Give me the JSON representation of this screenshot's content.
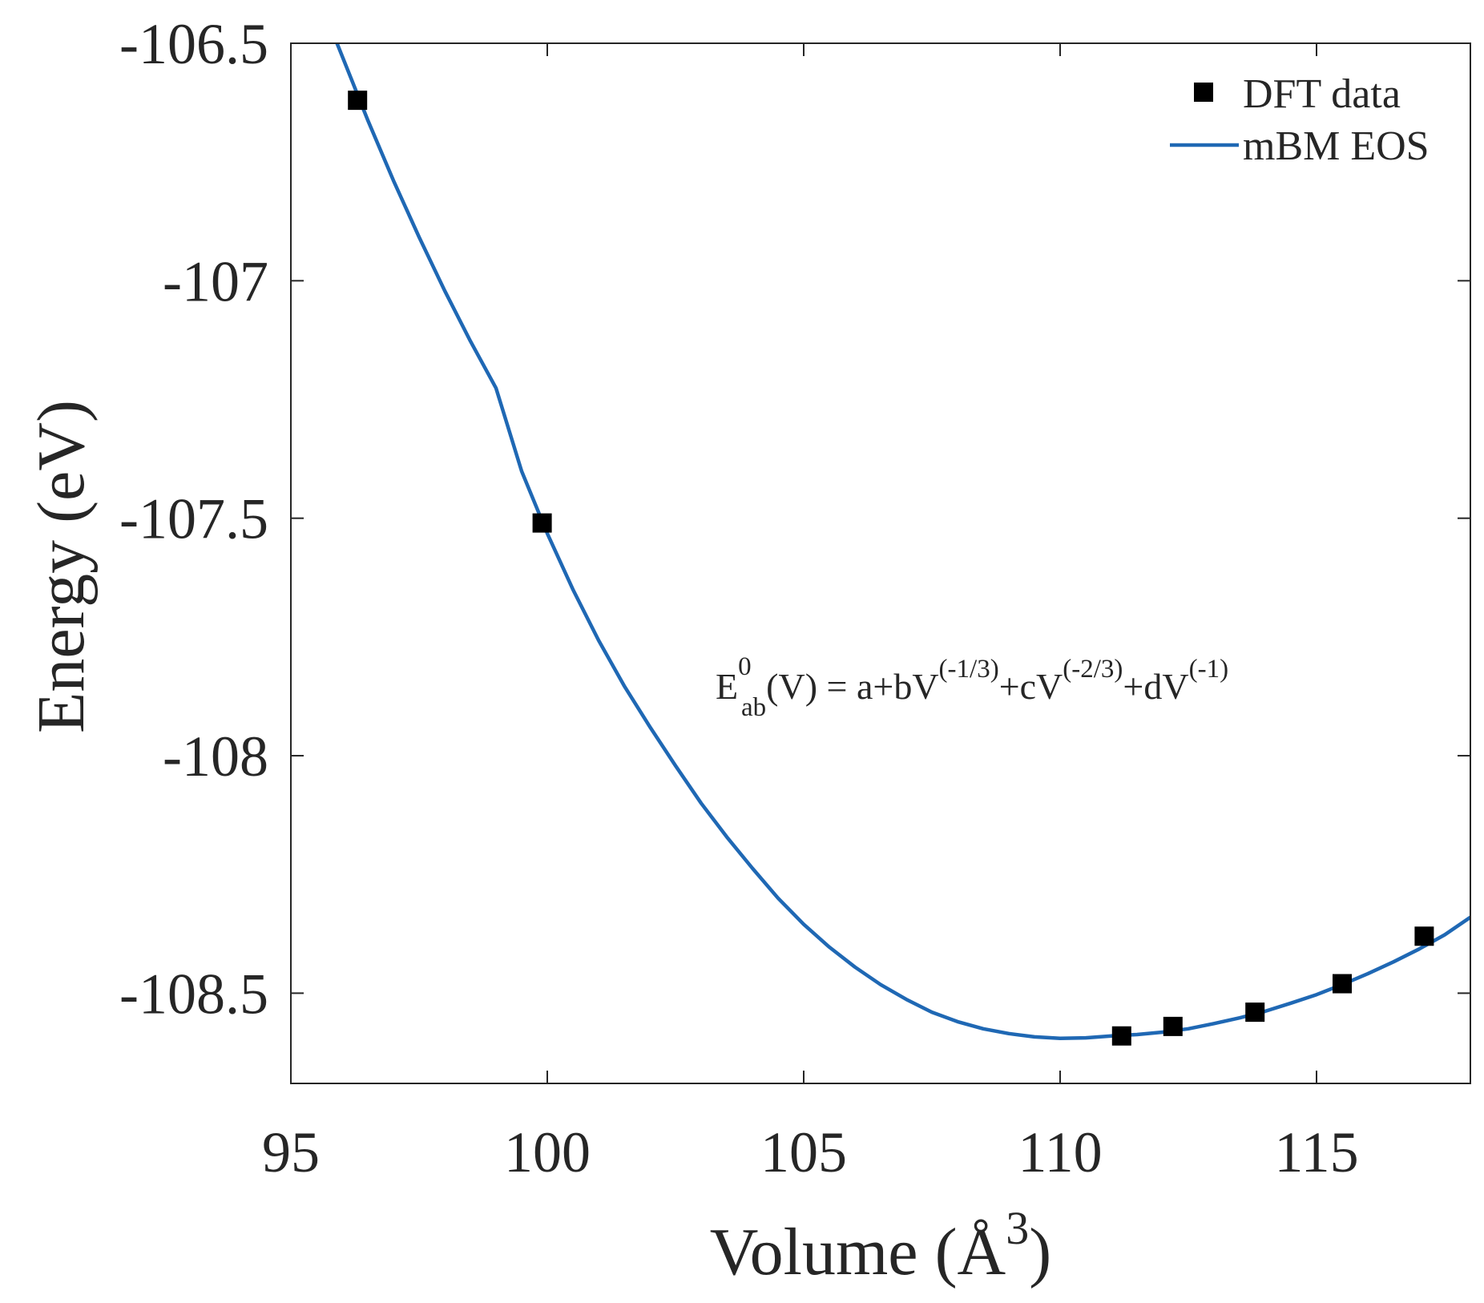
{
  "chart_data": {
    "type": "scatter",
    "title": "",
    "xlabel": "Volume (Å",
    "xlabel_sup": "3",
    "xlabel_close": ")",
    "ylabel": "Energy (eV)",
    "xlim": [
      95,
      118
    ],
    "ylim": [
      -108.69,
      -106.5
    ],
    "xticks": [
      95,
      100,
      105,
      110,
      115
    ],
    "xtick_labels": [
      "95",
      "100",
      "105",
      "110",
      "115"
    ],
    "yticks": [
      -106.5,
      -107,
      -107.5,
      -108,
      -108.5
    ],
    "ytick_labels": [
      "-106.5",
      "-107",
      "-107.5",
      "-108",
      "-108.5"
    ],
    "grid": false,
    "legend_position": "top-right",
    "series": [
      {
        "name": "DFT data",
        "kind": "scatter",
        "marker": "square",
        "color": "#000000",
        "points": [
          {
            "x": 96.3,
            "y": -106.62
          },
          {
            "x": 99.9,
            "y": -107.51
          },
          {
            "x": 111.2,
            "y": -108.59
          },
          {
            "x": 112.2,
            "y": -108.57
          },
          {
            "x": 113.8,
            "y": -108.54
          },
          {
            "x": 115.5,
            "y": -108.48
          },
          {
            "x": 117.1,
            "y": -108.38
          }
        ]
      },
      {
        "name": "mBM EOS",
        "kind": "line",
        "color": "#1f68b4",
        "x": [
          95.9,
          96.5,
          97,
          97.5,
          98,
          98.5,
          99,
          99.5,
          100,
          100.5,
          101,
          101.5,
          102,
          102.5,
          103,
          103.5,
          104,
          104.5,
          105,
          105.5,
          106,
          106.5,
          107,
          107.5,
          108,
          108.5,
          109,
          109.5,
          110,
          110.5,
          111,
          111.5,
          112,
          112.5,
          113,
          113.5,
          114,
          114.5,
          115,
          115.5,
          116,
          116.5,
          117,
          117.5,
          118
        ],
        "y": [
          -106.5,
          -106.662,
          -106.789,
          -106.908,
          -107.021,
          -107.127,
          -107.226,
          -107.401,
          -107.532,
          -107.65,
          -107.757,
          -107.853,
          -107.939,
          -108.021,
          -108.1,
          -108.171,
          -108.237,
          -108.3,
          -108.355,
          -108.403,
          -108.445,
          -108.482,
          -108.513,
          -108.54,
          -108.56,
          -108.575,
          -108.585,
          -108.592,
          -108.595,
          -108.594,
          -108.59,
          -108.587,
          -108.582,
          -108.575,
          -108.564,
          -108.552,
          -108.538,
          -108.521,
          -108.503,
          -108.482,
          -108.459,
          -108.434,
          -108.407,
          -108.377,
          -108.34
        ]
      }
    ],
    "annotation": {
      "base": "E",
      "sup0": "0",
      "sub": "ab",
      "part1": "(V) = a+bV",
      "exp1": "(-1/3)",
      "part2": "+cV",
      "exp2": "(-2/3)",
      "part3": "+dV",
      "exp3": "(-1)"
    }
  }
}
